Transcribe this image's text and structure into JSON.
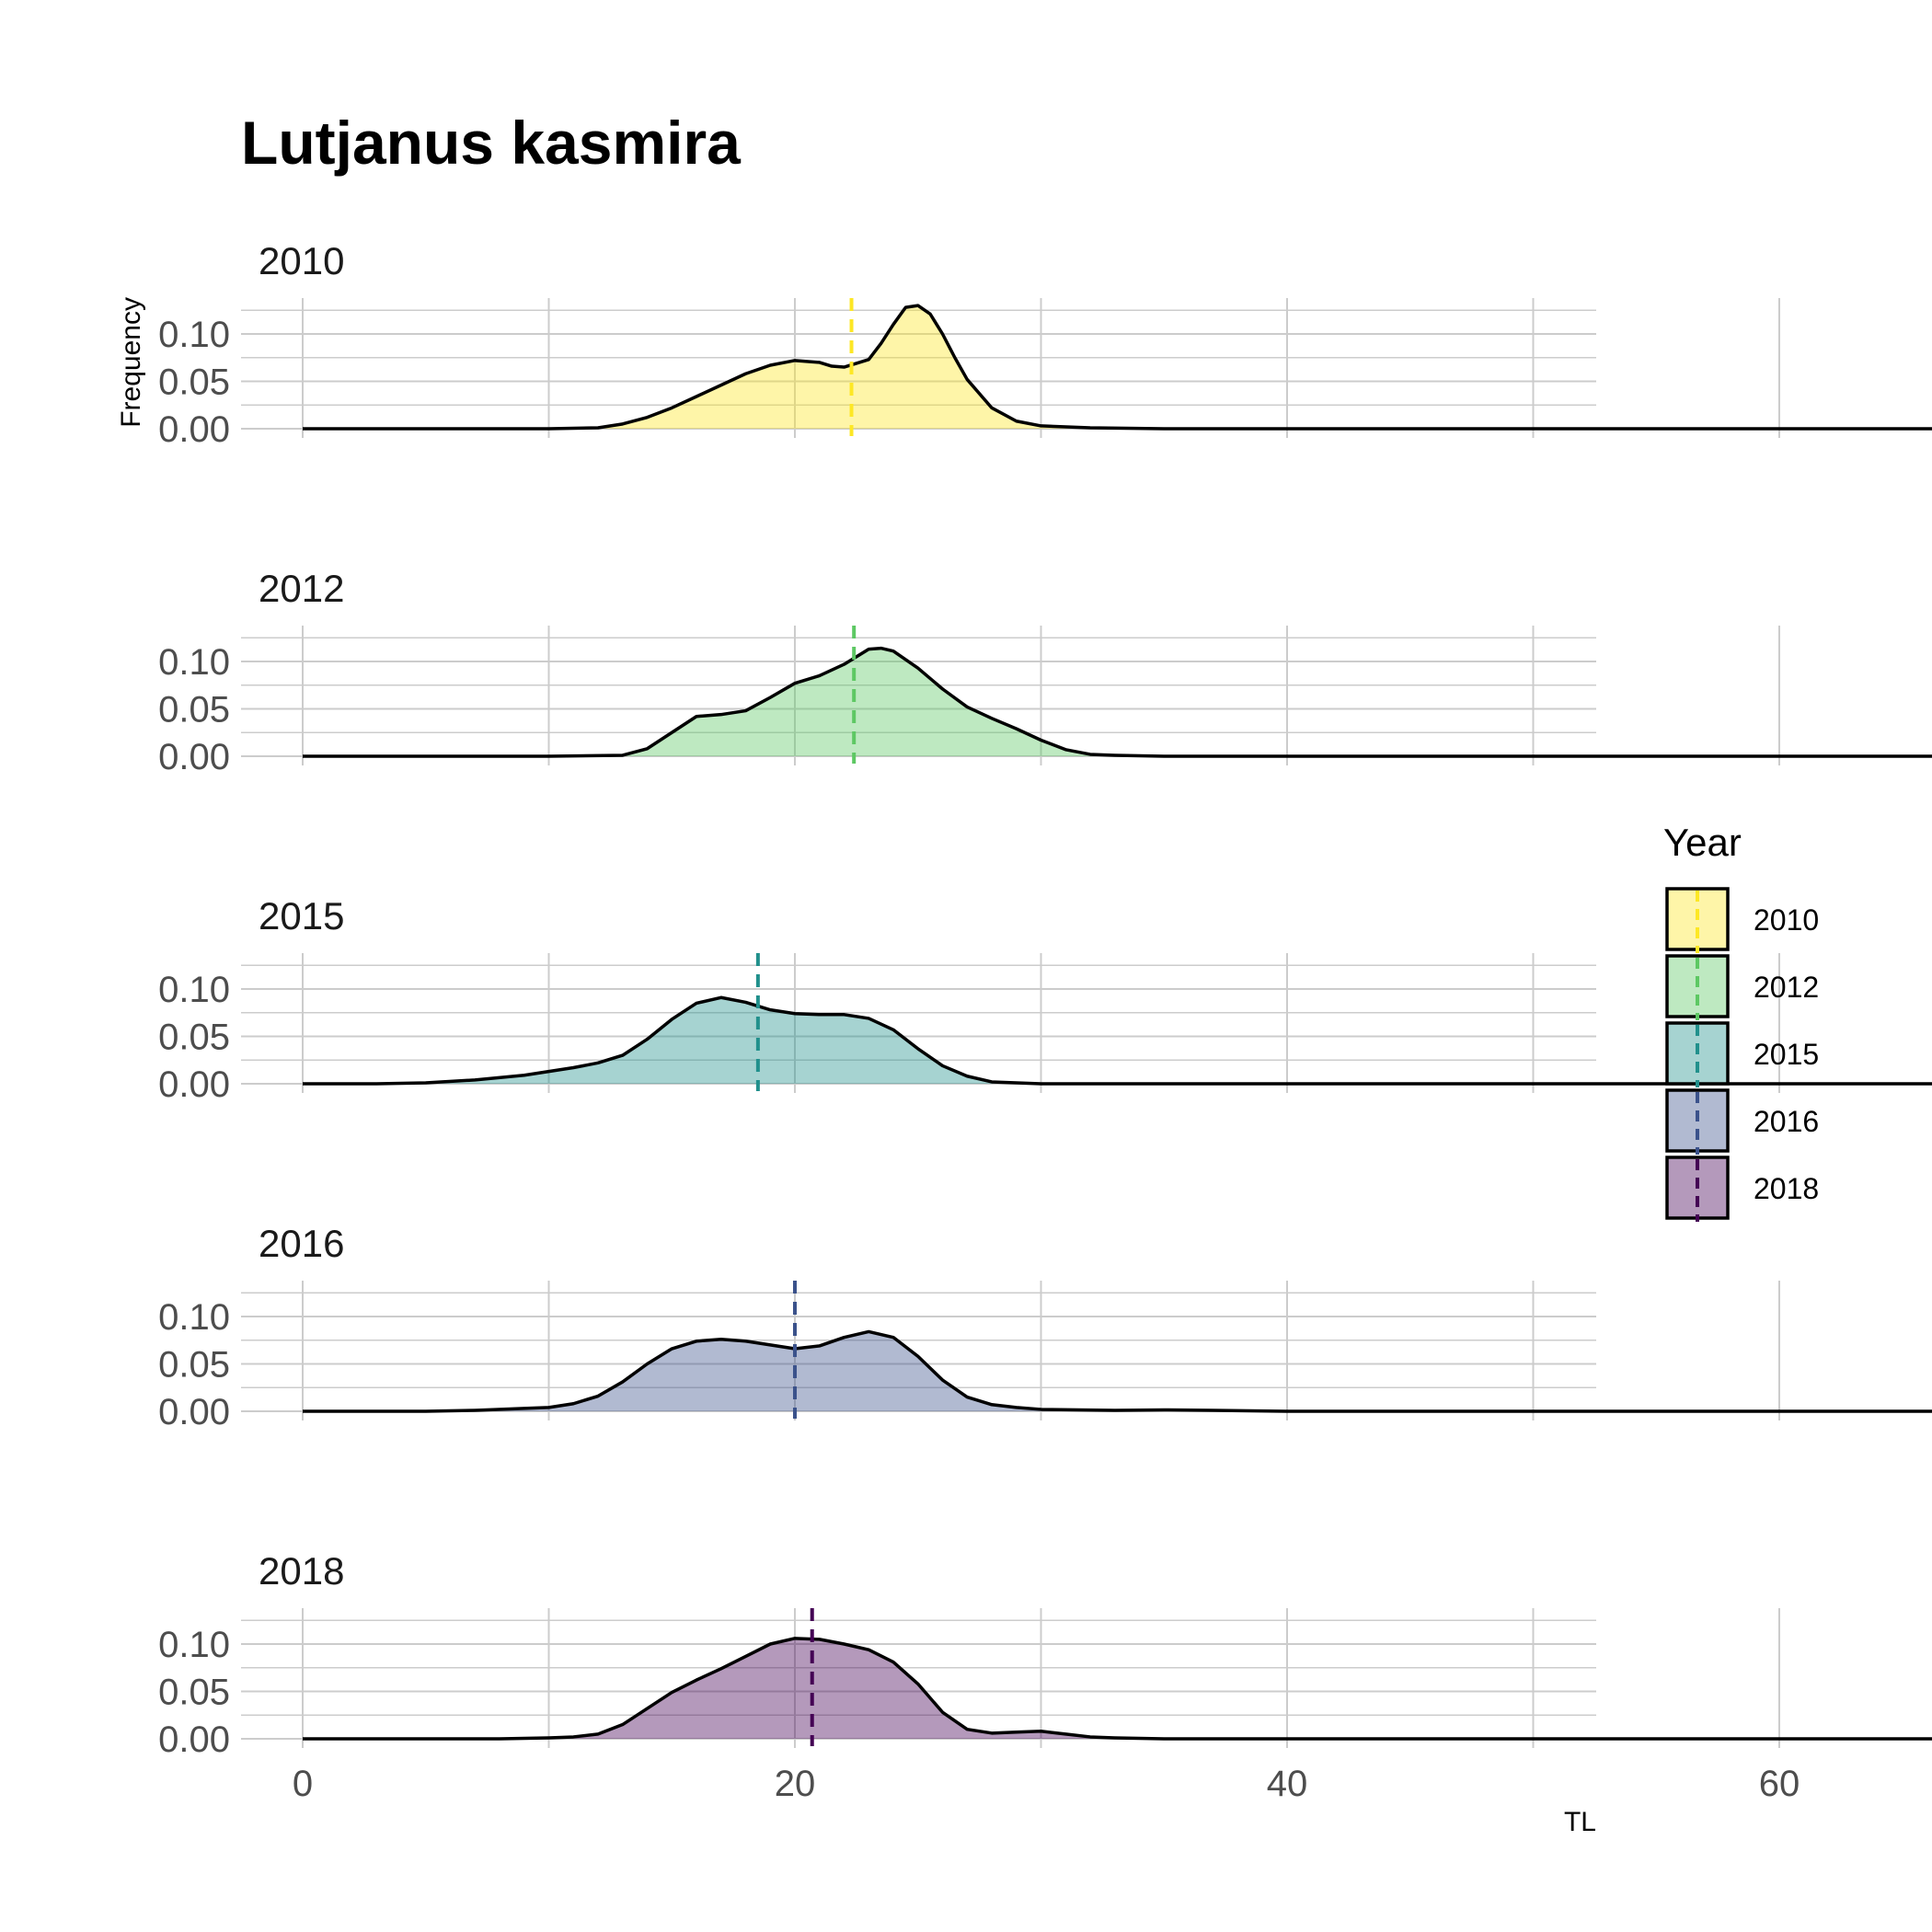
{
  "chart_data": {
    "type": "area",
    "title": "Lutjanus kasmira",
    "xlabel": "TL",
    "ylabel": "Frequency",
    "xlim": [
      0,
      75
    ],
    "ylim": [
      0,
      0.13
    ],
    "x_ticks": [
      0,
      20,
      40,
      60
    ],
    "x_tick_labels": [
      "0",
      "20",
      "40",
      "60"
    ],
    "y_ticks": [
      0,
      0.05,
      0.1
    ],
    "y_tick_labels": [
      "0.00",
      "0.05",
      "0.10"
    ],
    "grid": true,
    "legend": {
      "title": "Year",
      "position": "right"
    },
    "series": [
      {
        "name": "2010",
        "color": "#FDE725",
        "mean": 22.3,
        "points": [
          [
            0,
            0
          ],
          [
            5,
            0
          ],
          [
            10,
            0
          ],
          [
            12,
            0.001
          ],
          [
            13,
            0.005
          ],
          [
            14,
            0.012
          ],
          [
            15,
            0.022
          ],
          [
            16,
            0.034
          ],
          [
            17,
            0.046
          ],
          [
            18,
            0.058
          ],
          [
            19,
            0.067
          ],
          [
            20,
            0.072
          ],
          [
            21,
            0.07
          ],
          [
            21.5,
            0.066
          ],
          [
            22,
            0.065
          ],
          [
            23,
            0.073
          ],
          [
            23.5,
            0.09
          ],
          [
            24,
            0.11
          ],
          [
            24.5,
            0.128
          ],
          [
            25,
            0.13
          ],
          [
            25.5,
            0.121
          ],
          [
            26,
            0.1
          ],
          [
            26.5,
            0.075
          ],
          [
            27,
            0.052
          ],
          [
            28,
            0.022
          ],
          [
            29,
            0.008
          ],
          [
            30,
            0.003
          ],
          [
            32,
            0.001
          ],
          [
            35,
            0
          ],
          [
            50,
            0
          ],
          [
            75,
            0
          ]
        ]
      },
      {
        "name": "2012",
        "color": "#5DC863",
        "mean": 22.4,
        "points": [
          [
            0,
            0
          ],
          [
            10,
            0
          ],
          [
            13,
            0.001
          ],
          [
            14,
            0.008
          ],
          [
            15,
            0.025
          ],
          [
            16,
            0.042
          ],
          [
            17,
            0.044
          ],
          [
            18,
            0.048
          ],
          [
            19,
            0.062
          ],
          [
            20,
            0.077
          ],
          [
            21,
            0.085
          ],
          [
            22,
            0.097
          ],
          [
            23,
            0.113
          ],
          [
            23.5,
            0.114
          ],
          [
            24,
            0.111
          ],
          [
            25,
            0.093
          ],
          [
            26,
            0.071
          ],
          [
            27,
            0.052
          ],
          [
            28,
            0.04
          ],
          [
            29,
            0.029
          ],
          [
            30,
            0.017
          ],
          [
            31,
            0.007
          ],
          [
            32,
            0.002
          ],
          [
            33,
            0.001
          ],
          [
            35,
            0
          ],
          [
            75,
            0
          ]
        ]
      },
      {
        "name": "2015",
        "color": "#21908C",
        "mean": 18.5,
        "points": [
          [
            0,
            0
          ],
          [
            3,
            0
          ],
          [
            5,
            0.001
          ],
          [
            7,
            0.004
          ],
          [
            9,
            0.009
          ],
          [
            11,
            0.017
          ],
          [
            12,
            0.022
          ],
          [
            13,
            0.03
          ],
          [
            14,
            0.047
          ],
          [
            15,
            0.068
          ],
          [
            16,
            0.085
          ],
          [
            17,
            0.091
          ],
          [
            18,
            0.086
          ],
          [
            19,
            0.078
          ],
          [
            20,
            0.074
          ],
          [
            21,
            0.073
          ],
          [
            22,
            0.073
          ],
          [
            23,
            0.069
          ],
          [
            24,
            0.057
          ],
          [
            25,
            0.037
          ],
          [
            26,
            0.019
          ],
          [
            27,
            0.008
          ],
          [
            28,
            0.002
          ],
          [
            30,
            0
          ],
          [
            75,
            0
          ]
        ]
      },
      {
        "name": "2016",
        "color": "#3B528B",
        "mean": 20.0,
        "points": [
          [
            0,
            0
          ],
          [
            5,
            0
          ],
          [
            7,
            0.001
          ],
          [
            9,
            0.003
          ],
          [
            10,
            0.004
          ],
          [
            11,
            0.008
          ],
          [
            12,
            0.016
          ],
          [
            13,
            0.031
          ],
          [
            14,
            0.05
          ],
          [
            15,
            0.066
          ],
          [
            16,
            0.074
          ],
          [
            17,
            0.076
          ],
          [
            18,
            0.074
          ],
          [
            19,
            0.07
          ],
          [
            20,
            0.066
          ],
          [
            21,
            0.069
          ],
          [
            22,
            0.078
          ],
          [
            23,
            0.084
          ],
          [
            24,
            0.078
          ],
          [
            25,
            0.058
          ],
          [
            26,
            0.033
          ],
          [
            27,
            0.015
          ],
          [
            28,
            0.007
          ],
          [
            29,
            0.004
          ],
          [
            30,
            0.002
          ],
          [
            33,
            0.001
          ],
          [
            35,
            0.0015
          ],
          [
            37,
            0.001
          ],
          [
            40,
            0
          ],
          [
            75,
            0
          ]
        ]
      },
      {
        "name": "2018",
        "color": "#440154",
        "mean": 20.7,
        "points": [
          [
            0,
            0
          ],
          [
            8,
            0
          ],
          [
            10,
            0.001
          ],
          [
            11,
            0.002
          ],
          [
            12,
            0.005
          ],
          [
            13,
            0.015
          ],
          [
            14,
            0.032
          ],
          [
            15,
            0.049
          ],
          [
            16,
            0.062
          ],
          [
            17,
            0.074
          ],
          [
            18,
            0.087
          ],
          [
            19,
            0.1
          ],
          [
            20,
            0.106
          ],
          [
            21,
            0.105
          ],
          [
            22,
            0.1
          ],
          [
            23,
            0.094
          ],
          [
            24,
            0.081
          ],
          [
            25,
            0.058
          ],
          [
            26,
            0.028
          ],
          [
            27,
            0.01
          ],
          [
            28,
            0.006
          ],
          [
            29,
            0.007
          ],
          [
            30,
            0.008
          ],
          [
            31,
            0.005
          ],
          [
            32,
            0.002
          ],
          [
            33,
            0.001
          ],
          [
            35,
            0
          ],
          [
            75,
            0
          ]
        ]
      }
    ]
  }
}
